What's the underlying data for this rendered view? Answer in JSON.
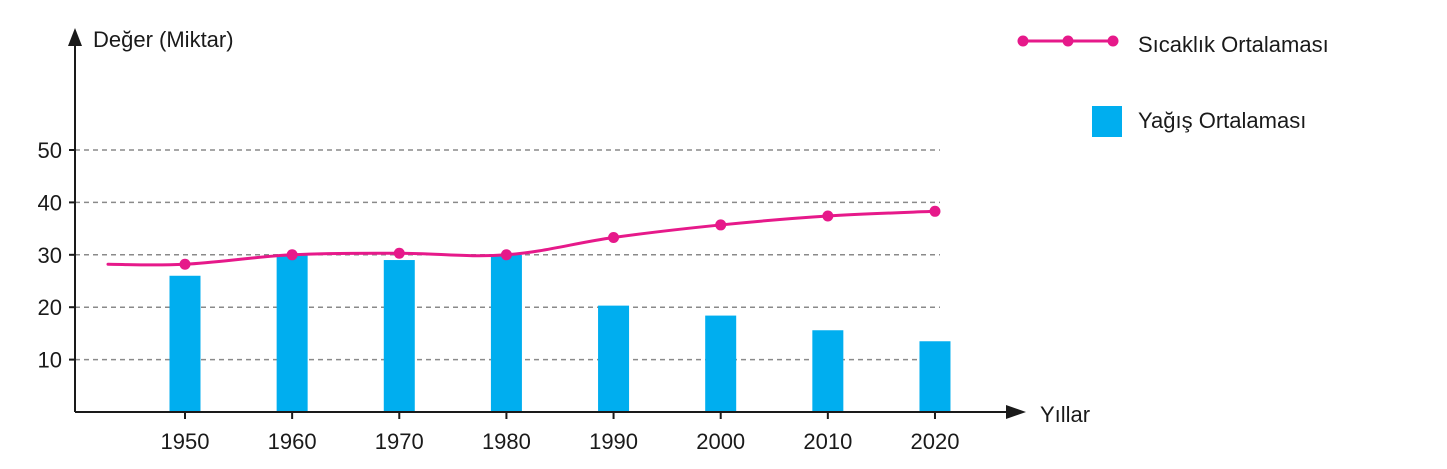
{
  "chart_data": {
    "type": "bar",
    "categories": [
      "1950",
      "1960",
      "1970",
      "1980",
      "1990",
      "2000",
      "2010",
      "2020"
    ],
    "series": [
      {
        "name": "Yağış Ortalaması",
        "type": "bar",
        "color": "#00aeef",
        "values": [
          26,
          30,
          29,
          30,
          20.3,
          18.4,
          15.6,
          13.5
        ]
      },
      {
        "name": "Sıcaklık Ortalaması",
        "type": "line",
        "color": "#e6198a",
        "values": [
          28.2,
          30,
          30.3,
          30,
          33.3,
          35.7,
          37.4,
          38.3
        ],
        "start_value": 28.2
      }
    ],
    "xlabel": "Yıllar",
    "ylabel": "Değer (Miktar)",
    "yticks": [
      10,
      20,
      30,
      40,
      50
    ],
    "ylim": [
      0,
      50
    ],
    "grid": "horizontal-dashed",
    "legend_position": "top-right"
  }
}
